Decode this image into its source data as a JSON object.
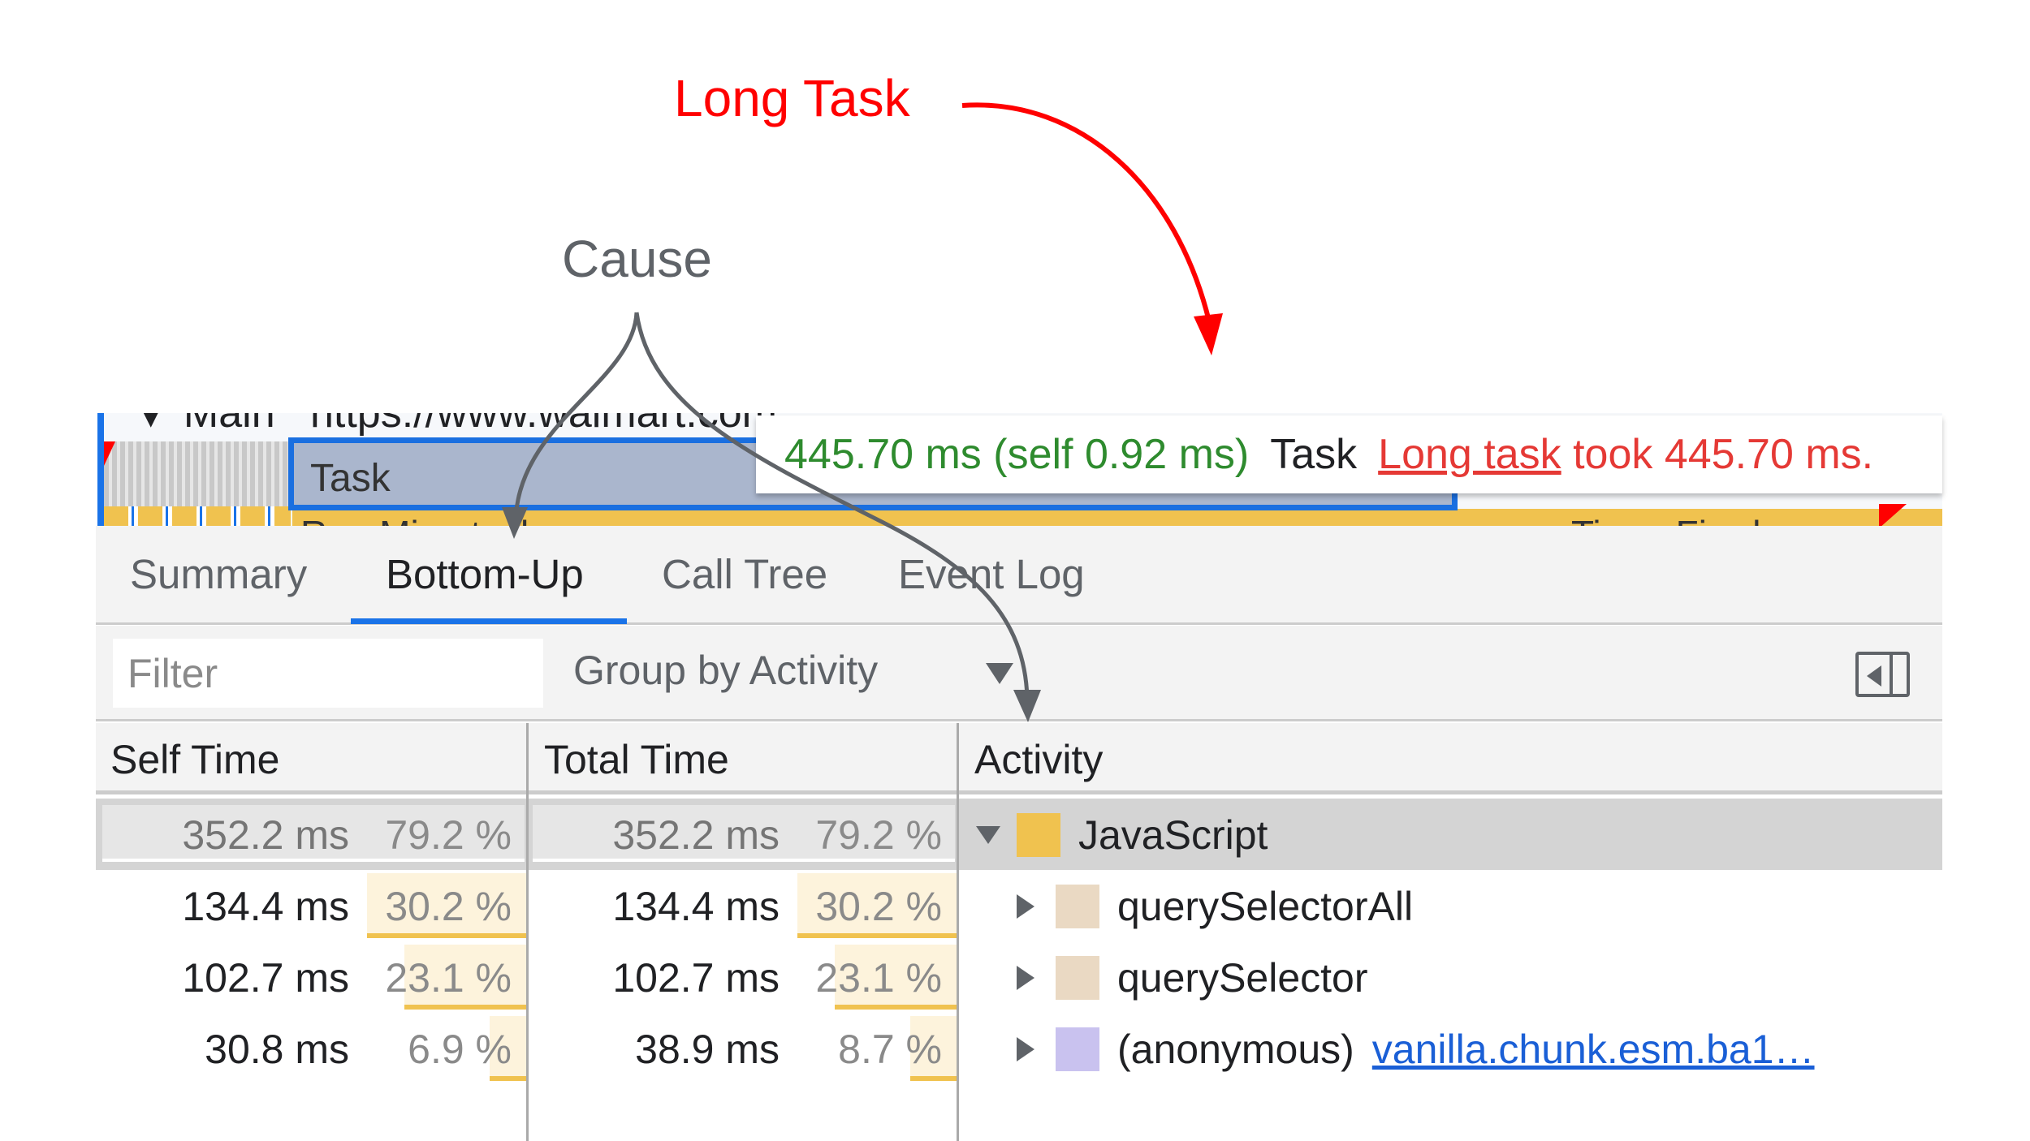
{
  "annotations": {
    "long_task": "Long Task",
    "cause": "Cause",
    "colors": {
      "long_task": "#ff0000",
      "cause": "#5f6368"
    }
  },
  "timeline": {
    "track_label": "▼ Main",
    "url": "https://www.walmart.com",
    "task_label": "Task",
    "run_microtasks": "Run Microtasks",
    "timer_fired": "Timer Fired"
  },
  "tooltip": {
    "duration": "445.70 ms (self 0.92 ms)",
    "name": "Task",
    "warning_link": "Long task",
    "warning_text": "took 445.70 ms."
  },
  "tabs": [
    {
      "label": "Summary",
      "active": false
    },
    {
      "label": "Bottom-Up",
      "active": true
    },
    {
      "label": "Call Tree",
      "active": false
    },
    {
      "label": "Event Log",
      "active": false
    }
  ],
  "toolbar": {
    "filter_placeholder": "Filter",
    "filter_value": "",
    "group_by": "Group by Activity"
  },
  "table": {
    "columns": [
      "Self Time",
      "Total Time",
      "Activity"
    ],
    "rows": [
      {
        "self_ms": "352.2 ms",
        "self_pct": "79.2 %",
        "self_pct_value": 79.2,
        "total_ms": "352.2 ms",
        "total_pct": "79.2 %",
        "total_pct_value": 79.2,
        "activity": "JavaScript",
        "url": "",
        "color": "#f0c24f",
        "expanded": true,
        "selected": true,
        "indent": 0
      },
      {
        "self_ms": "134.4 ms",
        "self_pct": "30.2 %",
        "self_pct_value": 30.2,
        "total_ms": "134.4 ms",
        "total_pct": "30.2 %",
        "total_pct_value": 30.2,
        "activity": "querySelectorAll",
        "url": "",
        "color": "#ead9c3",
        "expanded": false,
        "selected": false,
        "indent": 1
      },
      {
        "self_ms": "102.7 ms",
        "self_pct": "23.1 %",
        "self_pct_value": 23.1,
        "total_ms": "102.7 ms",
        "total_pct": "23.1 %",
        "total_pct_value": 23.1,
        "activity": "querySelector",
        "url": "",
        "color": "#ead9c3",
        "expanded": false,
        "selected": false,
        "indent": 1
      },
      {
        "self_ms": "30.8 ms",
        "self_pct": "6.9 %",
        "self_pct_value": 6.9,
        "total_ms": "38.9 ms",
        "total_pct": "8.7 %",
        "total_pct_value": 8.7,
        "activity": "(anonymous)",
        "url": "vanilla.chunk.esm.ba1…",
        "color": "#c9c2ef",
        "expanded": false,
        "selected": false,
        "indent": 1
      }
    ]
  }
}
